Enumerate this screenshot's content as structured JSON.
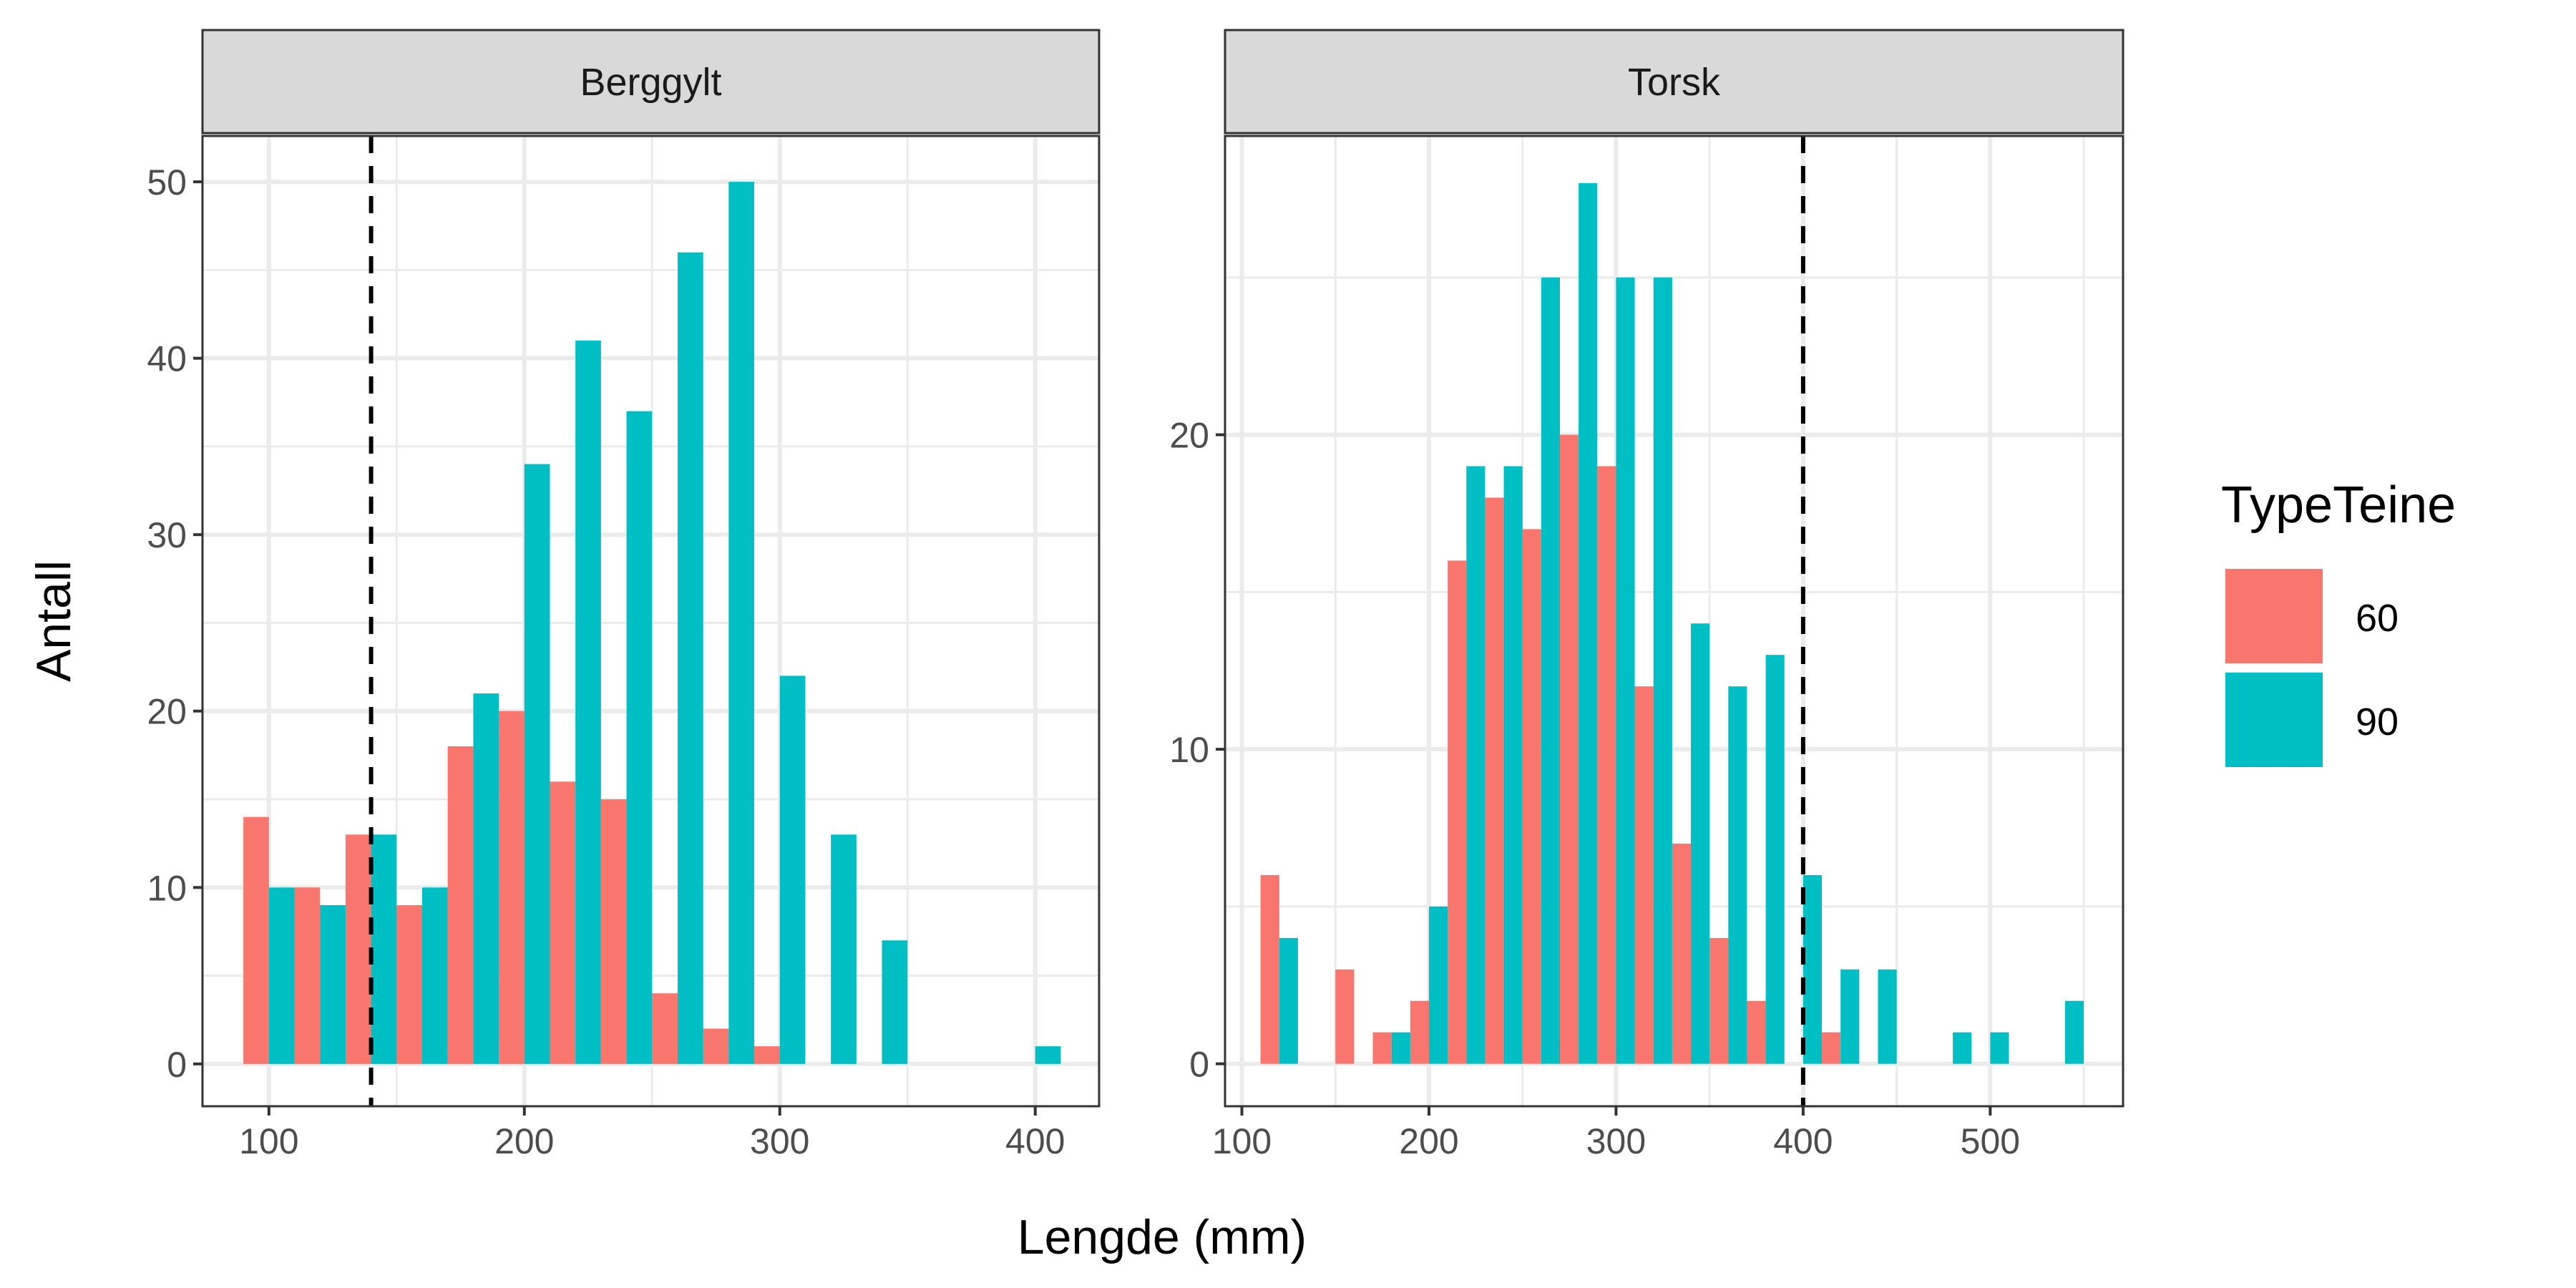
{
  "chart_data": {
    "type": "bar",
    "subtype": "dodged histogram, faceted",
    "xlabel": "Lengde (mm)",
    "ylabel": "Antall",
    "legend": {
      "title": "TypeTeine",
      "placement": "right",
      "entries": [
        "60",
        "90"
      ]
    },
    "colors": {
      "60": "#F8766D",
      "90": "#00BFC4"
    },
    "grid": true,
    "bin_width": 20,
    "panels": [
      {
        "strip": "Berggylt",
        "xlim": [
          74,
          425
        ],
        "ylim": [
          -2.4,
          52.6
        ],
        "xticks": [
          100,
          200,
          300,
          400
        ],
        "xminor": [
          150,
          250,
          350
        ],
        "yticks": [
          0,
          10,
          20,
          30,
          40,
          50
        ],
        "yminor": [
          5,
          15,
          25,
          35,
          45
        ],
        "vline": 140,
        "bins": [
          100,
          120,
          140,
          160,
          180,
          200,
          220,
          240,
          260,
          280,
          300,
          320,
          340,
          360,
          380,
          400
        ],
        "series": [
          {
            "name": "60",
            "values": [
              14,
              10,
              13,
              9,
              18,
              20,
              16,
              15,
              4,
              2,
              1,
              0,
              0,
              0,
              0,
              0
            ]
          },
          {
            "name": "90",
            "values": [
              10,
              9,
              13,
              10,
              21,
              34,
              41,
              37,
              46,
              50,
              22,
              13,
              7,
              0,
              0,
              1
            ]
          }
        ]
      },
      {
        "strip": "Torsk",
        "xlim": [
          91,
          571
        ],
        "ylim": [
          -1.35,
          29.5
        ],
        "xticks": [
          100,
          200,
          300,
          400,
          500
        ],
        "xminor": [
          150,
          250,
          350,
          450,
          550
        ],
        "yticks": [
          0,
          10,
          20
        ],
        "yminor": [
          5,
          15,
          25
        ],
        "vline": 400,
        "bins": [
          120,
          140,
          160,
          180,
          200,
          220,
          240,
          260,
          280,
          300,
          320,
          340,
          360,
          380,
          400,
          420,
          440,
          460,
          480,
          500,
          520,
          540
        ],
        "series": [
          {
            "name": "60",
            "values": [
              6,
              0,
              3,
              1,
              2,
              16,
              18,
              17,
              20,
              19,
              12,
              7,
              4,
              2,
              0,
              1,
              0,
              0,
              0,
              0,
              0,
              0
            ]
          },
          {
            "name": "90",
            "values": [
              4,
              0,
              0,
              1,
              5,
              19,
              19,
              25,
              28,
              25,
              25,
              14,
              12,
              13,
              6,
              3,
              3,
              0,
              1,
              1,
              0,
              2
            ]
          }
        ]
      }
    ]
  }
}
